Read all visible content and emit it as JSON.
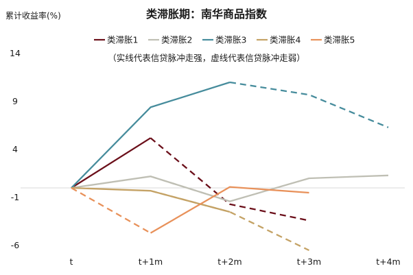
{
  "chart_data": {
    "type": "line",
    "title": "类滞胀期：南华商品指数",
    "ylabel": "累计收益率(%)",
    "note": "（实线代表信贷脉冲走强，虚线代表信贷脉冲走弱）",
    "categories": [
      "t",
      "t+1m",
      "t+2m",
      "t+3m",
      "t+4m"
    ],
    "yticks": [
      "14",
      "9",
      "4",
      "-1",
      "-6"
    ],
    "ylim": [
      -6,
      14
    ],
    "baseline": 0,
    "grid": false,
    "legend_position": "top",
    "series": [
      {
        "name": "类滞胀1",
        "color": "#6b0f1a",
        "solid": [
          0,
          5.2,
          null,
          null,
          null
        ],
        "dashed": [
          null,
          5.2,
          -1.7,
          -3.4,
          null
        ]
      },
      {
        "name": "类滞胀2",
        "color": "#bfbfb4",
        "solid": [
          0,
          1.2,
          -1.4,
          1.0,
          1.3
        ],
        "dashed": [
          null,
          1.2,
          -1.4,
          null,
          null
        ]
      },
      {
        "name": "类滞胀3",
        "color": "#468c9c",
        "solid": [
          0,
          8.4,
          11.0,
          null,
          null
        ],
        "dashed": [
          null,
          null,
          11.0,
          9.7,
          6.3
        ]
      },
      {
        "name": "类滞胀4",
        "color": "#c4a265",
        "solid": [
          0,
          -0.3,
          -2.5,
          null,
          null
        ],
        "dashed": [
          null,
          -0.3,
          -2.5,
          -6.5,
          null
        ]
      },
      {
        "name": "类滞胀5",
        "color": "#e8915a",
        "solid": [
          null,
          -4.7,
          0.1,
          -0.5,
          null
        ],
        "dashed": [
          0,
          -4.7,
          null,
          null,
          null
        ]
      }
    ]
  }
}
